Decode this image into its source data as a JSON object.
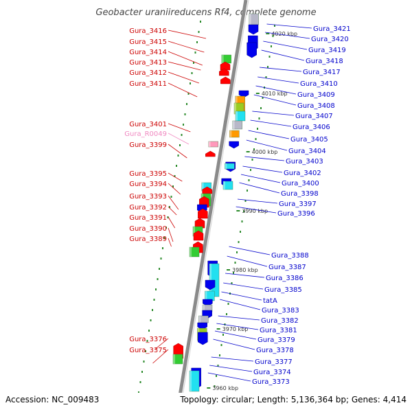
{
  "title": "Geobacter uraniireducens Rf4, complete genome",
  "footer": {
    "accession": "Accession: NC_009483",
    "topology": "Topology: circular; Length: 5,136,364 bp; Genes: 4,414"
  },
  "kbp_marks": [
    "4020 kbp",
    "4010 kbp",
    "4000 kbp",
    "3990 kbp",
    "3980 kbp",
    "3970 kbp",
    "3960 kbp"
  ],
  "left_labels": [
    "Gura_3416",
    "Gura_3415",
    "Gura_3414",
    "Gura_3413",
    "Gura_3412",
    "Gura_3411",
    "Gura_3401",
    "Gura_R0049",
    "Gura_3399",
    "Gura_3395",
    "Gura_3394",
    "Gura_3393",
    "Gura_3392",
    "Gura_3391",
    "Gura_3390",
    "Gura_3389",
    "Gura_3376",
    "Gura_3375"
  ],
  "right_labels": [
    "Gura_3421",
    "Gura_3420",
    "Gura_3419",
    "Gura_3418",
    "Gura_3417",
    "Gura_3410",
    "Gura_3409",
    "Gura_3408",
    "Gura_3407",
    "Gura_3406",
    "Gura_3405",
    "Gura_3404",
    "Gura_3403",
    "Gura_3402",
    "Gura_3400",
    "Gura_3398",
    "Gura_3397",
    "Gura_3396",
    "Gura_3388",
    "Gura_3387",
    "Gura_3386",
    "Gura_3385",
    "tatA",
    "Gura_3383",
    "Gura_3382",
    "Gura_3381",
    "Gura_3379",
    "Gura_3378",
    "Gura_3377",
    "Gura_3374",
    "Gura_3373"
  ],
  "colors": {
    "left_label": "#cc0000",
    "right_label": "#0000cc",
    "rna_label": "#f088c0",
    "forward_gene": "#ff0000",
    "reverse_gene": "#0000ee",
    "cog_green": "#33cc33",
    "cog_cyan": "#22e0f0",
    "backbone": "#888888"
  }
}
